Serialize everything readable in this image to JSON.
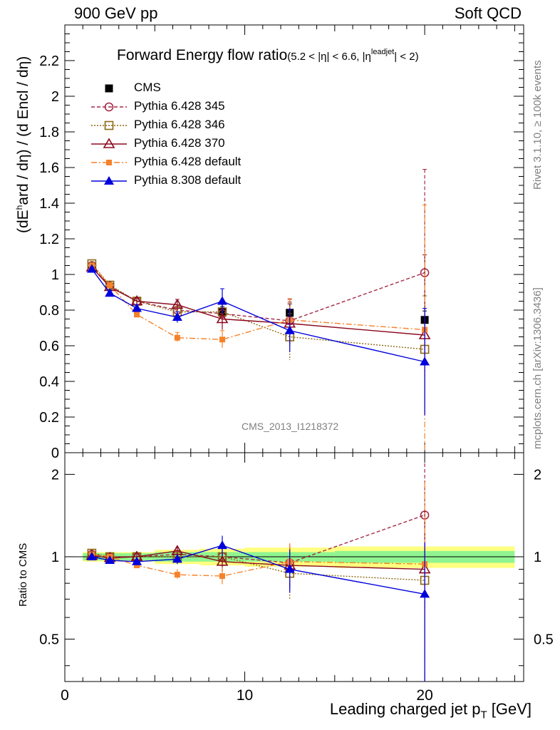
{
  "header": {
    "left": "900 GeV pp",
    "right": "Soft QCD"
  },
  "side_labels": {
    "rivet": "Rivet 3.1.10, ≥ 100k events",
    "mcplots": "mcplots.cern.ch [arXiv:1306.3436]"
  },
  "watermark": "CMS_2013_I1218372",
  "chart_data": {
    "type": "line",
    "title_main": "Forward Energy flow ratio",
    "title_sub_a": "(5.2 < |η| < 6.6, |η",
    "title_sup": "leadjet",
    "title_sub_b": "| < 2)",
    "ylabel": "(dE",
    "ylabel_sup": "h",
    "ylabel_rest": "ard / dη) / (d Encl / dη)",
    "ratio_ylabel": "Ratio to CMS",
    "xlabel": "Leading charged jet p",
    "xlabel_sub": "T",
    "xlabel_unit": " [GeV]",
    "xlim": [
      0,
      25.5
    ],
    "ylim": [
      0,
      2.4
    ],
    "ratio_ylim": [
      0.35,
      2.4
    ],
    "ratio_scale": "log",
    "x_ticks": [
      "0",
      "10",
      "20"
    ],
    "y_ticks": [
      "0",
      "0.2",
      "0.4",
      "0.6",
      "0.8",
      "1",
      "1.2",
      "1.4",
      "1.6",
      "1.8",
      "2",
      "2.2"
    ],
    "ratio_y_ticks": [
      "0.5",
      "1",
      "2"
    ],
    "legend_position": "top-left",
    "x": [
      1.5,
      2.5,
      4.0,
      6.25,
      8.75,
      12.5,
      20.0
    ],
    "series": [
      {
        "name": "CMS",
        "color": "#000000",
        "marker": "square",
        "dash": "",
        "values": [
          null,
          null,
          null,
          null,
          0.79,
          0.785,
          0.745
        ],
        "err": [
          0,
          0,
          0,
          0,
          0.03,
          0.05,
          0.05
        ],
        "ratio": [
          1,
          1,
          1,
          1,
          1,
          1,
          1
        ]
      },
      {
        "name": "Pythia 6.428 345",
        "color": "#a52a46",
        "marker": "circle-open",
        "dash": "5,3",
        "values": [
          1.05,
          0.935,
          0.85,
          0.8,
          0.78,
          0.74,
          1.01
        ],
        "err": [
          0.01,
          0.015,
          0.02,
          0.03,
          0.06,
          0.12,
          0.58
        ],
        "ratio": [
          1.02,
          1.0,
          1.0,
          1.02,
          1.0,
          0.95,
          1.42
        ]
      },
      {
        "name": "Pythia 6.428 346",
        "color": "#8b6914",
        "marker": "square-open",
        "dash": "2,2",
        "values": [
          1.06,
          0.94,
          0.85,
          0.79,
          0.79,
          0.65,
          0.58
        ],
        "err": [
          0.01,
          0.015,
          0.02,
          0.03,
          0.06,
          0.13,
          0.3
        ],
        "ratio": [
          1.03,
          1.0,
          1.0,
          1.0,
          1.0,
          0.87,
          0.82
        ]
      },
      {
        "name": "Pythia 6.428 370",
        "color": "#8b0a1e",
        "marker": "triangle-open",
        "dash": "",
        "values": [
          1.04,
          0.93,
          0.85,
          0.83,
          0.75,
          0.725,
          0.66
        ],
        "err": [
          0.01,
          0.015,
          0.02,
          0.03,
          0.06,
          0.12,
          0.45
        ],
        "ratio": [
          1.01,
          0.99,
          1.0,
          1.05,
          0.96,
          0.93,
          0.9
        ]
      },
      {
        "name": "Pythia 6.428 default",
        "color": "#f5822a",
        "marker": "square-filled",
        "dash": "8,3,2,3",
        "values": [
          1.05,
          0.94,
          0.775,
          0.645,
          0.635,
          0.745,
          0.69
        ],
        "err": [
          0.01,
          0.015,
          0.02,
          0.03,
          0.05,
          0.12,
          0.7
        ],
        "ratio": [
          1.02,
          1.0,
          0.93,
          0.86,
          0.85,
          0.96,
          0.94
        ]
      },
      {
        "name": "Pythia 8.308 default",
        "color": "#0000dc",
        "marker": "triangle-filled",
        "dash": "",
        "values": [
          1.03,
          0.895,
          0.81,
          0.76,
          0.85,
          0.685,
          0.51
        ],
        "err": [
          0.01,
          0.015,
          0.02,
          0.03,
          0.07,
          0.12,
          0.3
        ],
        "ratio": [
          1.0,
          0.97,
          0.96,
          0.98,
          1.1,
          0.9,
          0.73
        ]
      }
    ],
    "ratio_band": {
      "x_edges": [
        1.0,
        2.0,
        3.0,
        5.0,
        7.5,
        10.0,
        15.0,
        25.0
      ],
      "green": [
        0.03,
        0.03,
        0.03,
        0.04,
        0.04,
        0.04,
        0.05
      ],
      "yellow": [
        0.04,
        0.04,
        0.04,
        0.06,
        0.07,
        0.08,
        0.09
      ]
    }
  }
}
